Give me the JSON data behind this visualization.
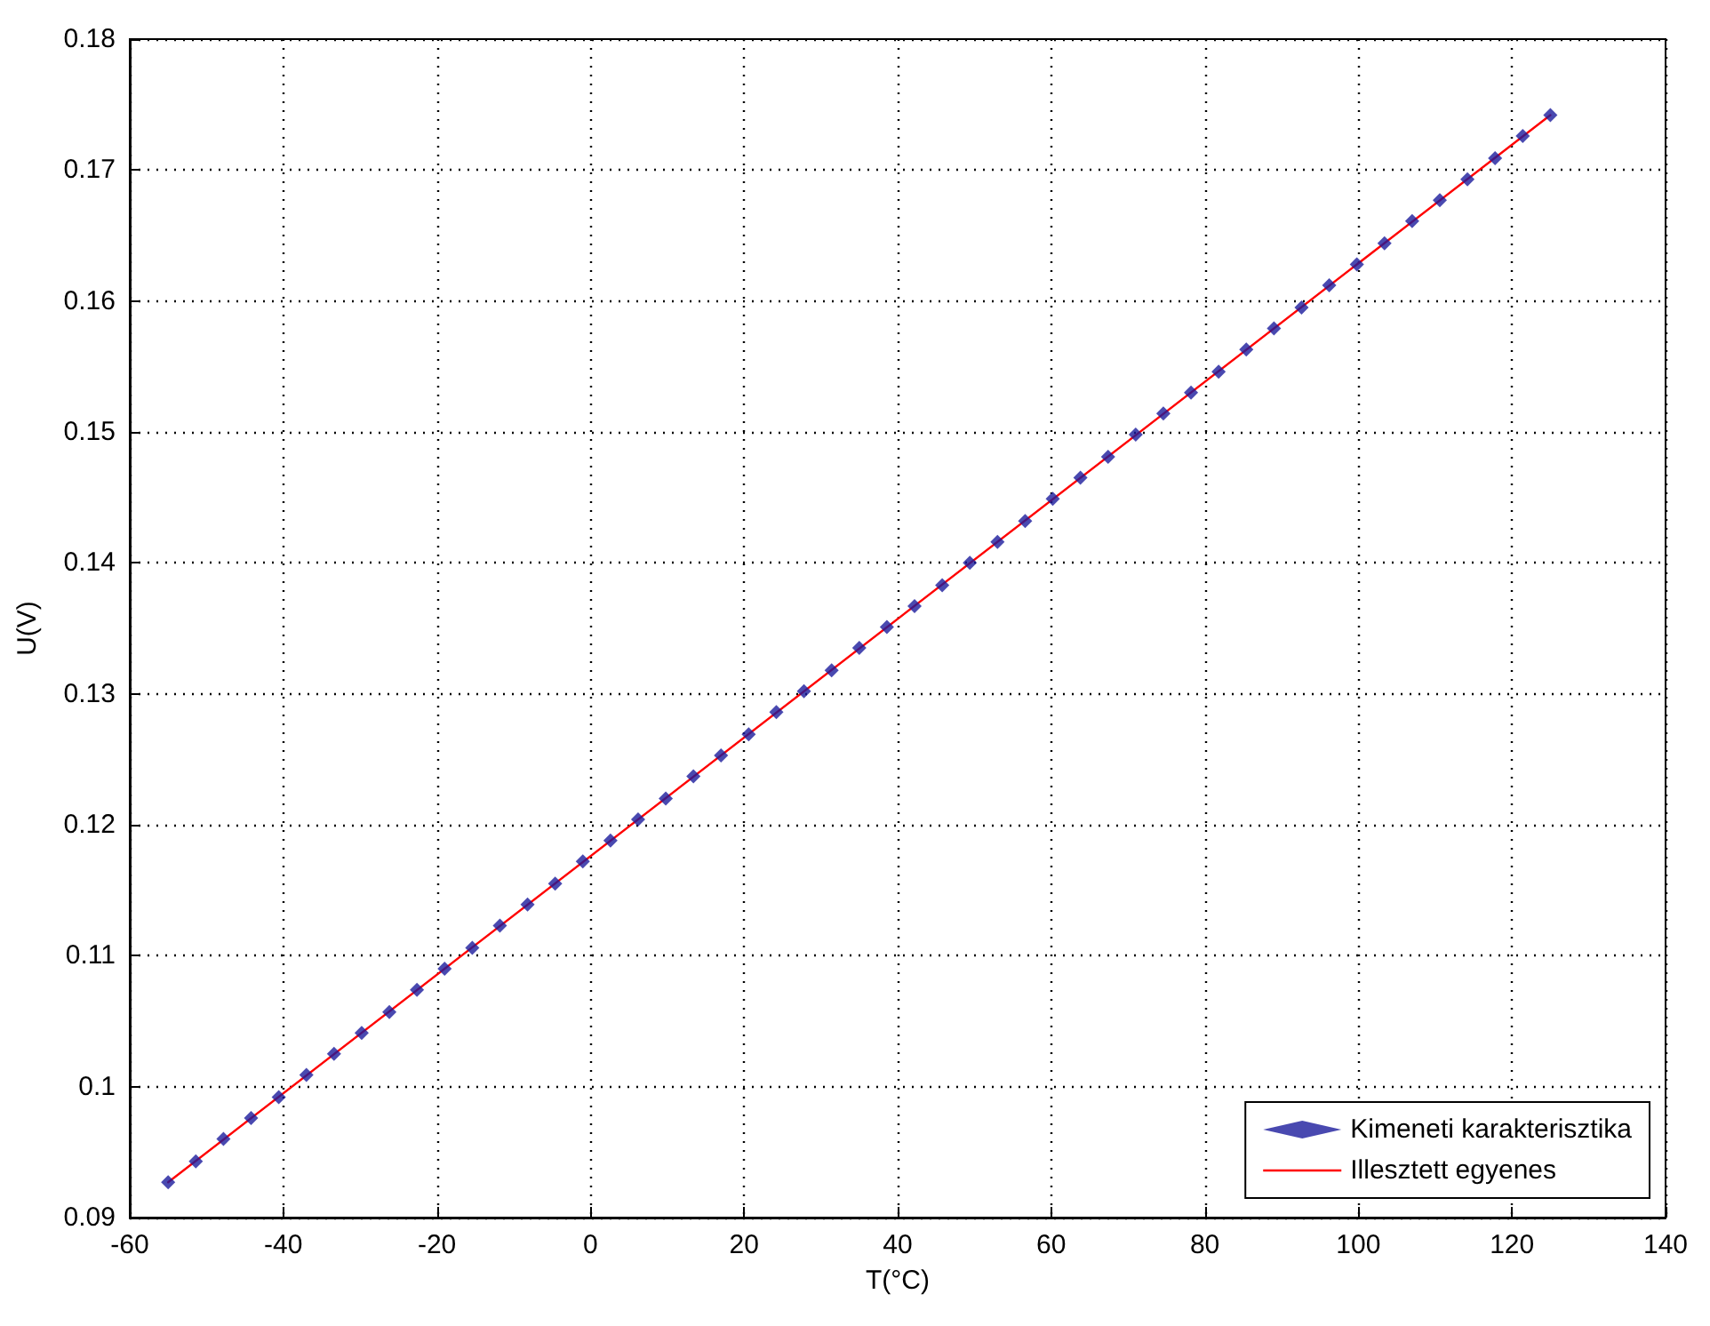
{
  "chart_data": {
    "type": "scatter",
    "xlabel": "T(°C)",
    "ylabel": "U(V)",
    "xlim": [
      -60,
      140
    ],
    "xticks": [
      -60,
      -40,
      -20,
      0,
      20,
      40,
      60,
      80,
      100,
      120,
      140
    ],
    "ylim": [
      0.09,
      0.18
    ],
    "yticks": [
      0.09,
      0.1,
      0.11,
      0.12,
      0.13,
      0.14,
      0.15,
      0.16,
      0.17,
      0.18
    ],
    "grid": true,
    "legend": "bottom right",
    "series": [
      {
        "name": "Kimeneti karakterisztika",
        "marker": "diamond",
        "color": "#1c1c9c",
        "x": [
          -55,
          -51.4,
          -47.8,
          -44.2,
          -40.6,
          -37,
          -33.4,
          -29.8,
          -26.2,
          -22.6,
          -19,
          -15.4,
          -11.8,
          -8.2,
          -4.6,
          -1,
          2.6,
          6.2,
          9.8,
          13.4,
          17,
          20.6,
          24.2,
          27.8,
          31.4,
          35,
          38.6,
          42.2,
          45.8,
          49.4,
          53,
          56.6,
          60.2,
          63.8,
          67.4,
          71,
          74.6,
          78.2,
          81.8,
          85.4,
          89,
          92.6,
          96.2,
          99.8,
          103.4,
          107,
          110.6,
          114.2,
          117.8,
          121.4,
          125
        ],
        "values": [
          0.0927,
          0.0943,
          0.096,
          0.0976,
          0.0992,
          0.1009,
          0.1025,
          0.1041,
          0.1057,
          0.1074,
          0.109,
          0.1106,
          0.1123,
          0.1139,
          0.1155,
          0.1172,
          0.1188,
          0.1204,
          0.122,
          0.1237,
          0.1253,
          0.1269,
          0.1286,
          0.1302,
          0.1318,
          0.1335,
          0.1351,
          0.1367,
          0.1383,
          0.14,
          0.1416,
          0.1432,
          0.1449,
          0.1465,
          0.1481,
          0.1498,
          0.1514,
          0.153,
          0.1546,
          0.1563,
          0.1579,
          0.1595,
          0.1612,
          0.1628,
          0.1644,
          0.1661,
          0.1677,
          0.1693,
          0.1709,
          0.1726,
          0.1742
        ]
      },
      {
        "name": "Illesztett egyenes",
        "type": "line",
        "marker": "none",
        "line_style": "solid",
        "color": "#ff0000",
        "x": [
          -55,
          125
        ],
        "values": [
          0.0927,
          0.1742
        ]
      }
    ]
  }
}
